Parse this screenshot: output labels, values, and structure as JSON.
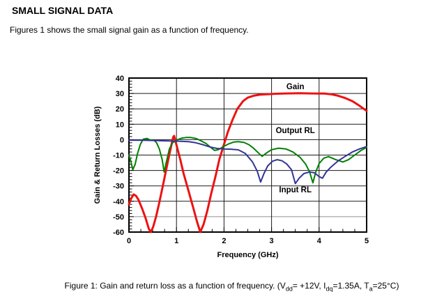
{
  "page": {
    "heading": "SMALL SIGNAL DATA",
    "intro": "Figures 1 shows the small signal gain as a function of frequency."
  },
  "caption": {
    "parts": [
      {
        "t": "Figure 1: Gain and return loss as a function of frequency. (V"
      },
      {
        "t": "dd"
      },
      {
        "t": "= +12V, I"
      },
      {
        "t": "dq"
      },
      {
        "t": "=1.35A, T"
      },
      {
        "t": "a"
      },
      {
        "t": "=25°C)"
      }
    ]
  },
  "chart_data": {
    "type": "line",
    "title": "",
    "xlabel": "Frequency (GHz)",
    "ylabel": "Gain & Return Losses (dB)",
    "xlim": [
      0,
      5
    ],
    "ylim": [
      -60,
      40
    ],
    "x_major_ticks": [
      0,
      1,
      2,
      3,
      4,
      5
    ],
    "y_major_ticks": [
      40,
      30,
      20,
      10,
      0,
      -10,
      -20,
      -30,
      -40,
      -50,
      -60
    ],
    "x_minor_step": 0.25,
    "y_minor_step": 2,
    "grid": true,
    "gray_gridline_at": -50,
    "legend_position": "inline-labels",
    "series": [
      {
        "name": "Gain",
        "color": "#ee1111",
        "width": 3,
        "label_pos": [
          3.5,
          34.5
        ],
        "points": [
          [
            0,
            -42
          ],
          [
            0.05,
            -38
          ],
          [
            0.1,
            -35.5
          ],
          [
            0.15,
            -36.5
          ],
          [
            0.2,
            -39
          ],
          [
            0.28,
            -45
          ],
          [
            0.35,
            -51
          ],
          [
            0.42,
            -58
          ],
          [
            0.46,
            -60
          ],
          [
            0.51,
            -56.5
          ],
          [
            0.57,
            -50
          ],
          [
            0.63,
            -42
          ],
          [
            0.7,
            -32
          ],
          [
            0.78,
            -20
          ],
          [
            0.84,
            -11
          ],
          [
            0.89,
            -4
          ],
          [
            0.93,
            1.5
          ],
          [
            0.95,
            2.5
          ],
          [
            0.98,
            -1
          ],
          [
            1.03,
            -7
          ],
          [
            1.08,
            -13
          ],
          [
            1.15,
            -22
          ],
          [
            1.25,
            -33
          ],
          [
            1.35,
            -44
          ],
          [
            1.43,
            -53
          ],
          [
            1.5,
            -60
          ],
          [
            1.57,
            -55
          ],
          [
            1.65,
            -46
          ],
          [
            1.73,
            -35
          ],
          [
            1.82,
            -24
          ],
          [
            1.9,
            -13
          ],
          [
            2.0,
            -3
          ],
          [
            2.08,
            5
          ],
          [
            2.18,
            13
          ],
          [
            2.28,
            20
          ],
          [
            2.4,
            25
          ],
          [
            2.5,
            27.3
          ],
          [
            2.62,
            28.5
          ],
          [
            2.75,
            29.2
          ],
          [
            2.9,
            29.5
          ],
          [
            3.1,
            29.8
          ],
          [
            3.3,
            30
          ],
          [
            3.6,
            30.2
          ],
          [
            3.85,
            30
          ],
          [
            4.0,
            29.9
          ],
          [
            4.1,
            30
          ],
          [
            4.25,
            29.5
          ],
          [
            4.4,
            28.5
          ],
          [
            4.55,
            27
          ],
          [
            4.7,
            25
          ],
          [
            4.85,
            22
          ],
          [
            5.0,
            18.7
          ]
        ]
      },
      {
        "name": "Output RL",
        "color": "#008000",
        "width": 2,
        "label_pos": [
          3.5,
          6
        ],
        "points": [
          [
            0,
            -10
          ],
          [
            0.04,
            -14
          ],
          [
            0.08,
            -19.5
          ],
          [
            0.13,
            -16
          ],
          [
            0.18,
            -9
          ],
          [
            0.24,
            -3
          ],
          [
            0.3,
            0.3
          ],
          [
            0.38,
            0.8
          ],
          [
            0.45,
            -0.3
          ],
          [
            0.52,
            -0.2
          ],
          [
            0.58,
            -2
          ],
          [
            0.64,
            -6
          ],
          [
            0.7,
            -13
          ],
          [
            0.74,
            -21
          ],
          [
            0.79,
            -14
          ],
          [
            0.85,
            -6
          ],
          [
            0.92,
            -2
          ],
          [
            1.0,
            -0.3
          ],
          [
            1.1,
            0.9
          ],
          [
            1.2,
            1.4
          ],
          [
            1.3,
            1.4
          ],
          [
            1.42,
            0.7
          ],
          [
            1.52,
            -0.8
          ],
          [
            1.62,
            -2.5
          ],
          [
            1.72,
            -5
          ],
          [
            1.8,
            -7
          ],
          [
            1.88,
            -6.5
          ],
          [
            2.0,
            -4.3
          ],
          [
            2.1,
            -2.7
          ],
          [
            2.2,
            -1.6
          ],
          [
            2.3,
            -1.3
          ],
          [
            2.42,
            -1.8
          ],
          [
            2.52,
            -3.2
          ],
          [
            2.62,
            -5.5
          ],
          [
            2.72,
            -8.5
          ],
          [
            2.8,
            -10.8
          ],
          [
            2.9,
            -8.5
          ],
          [
            3.0,
            -6.5
          ],
          [
            3.15,
            -5.5
          ],
          [
            3.3,
            -6
          ],
          [
            3.45,
            -8
          ],
          [
            3.6,
            -11.5
          ],
          [
            3.72,
            -16
          ],
          [
            3.8,
            -21
          ],
          [
            3.87,
            -28
          ],
          [
            3.93,
            -21
          ],
          [
            4.0,
            -15.5
          ],
          [
            4.1,
            -12
          ],
          [
            4.2,
            -11
          ],
          [
            4.35,
            -13
          ],
          [
            4.5,
            -14.5
          ],
          [
            4.62,
            -13
          ],
          [
            4.75,
            -10
          ],
          [
            4.88,
            -7
          ],
          [
            5.0,
            -5
          ]
        ]
      },
      {
        "name": "Input RL",
        "color": "#333399",
        "width": 2,
        "label_pos": [
          3.5,
          -32.5
        ],
        "points": [
          [
            0,
            -0.3
          ],
          [
            0.3,
            -0.4
          ],
          [
            0.6,
            -0.6
          ],
          [
            0.9,
            -0.9
          ],
          [
            1.05,
            -1
          ],
          [
            1.25,
            -1.3
          ],
          [
            1.4,
            -2
          ],
          [
            1.55,
            -3.2
          ],
          [
            1.7,
            -4.7
          ],
          [
            1.85,
            -5.7
          ],
          [
            2.0,
            -6
          ],
          [
            2.15,
            -6.2
          ],
          [
            2.3,
            -6.6
          ],
          [
            2.45,
            -9
          ],
          [
            2.6,
            -14.5
          ],
          [
            2.7,
            -20.5
          ],
          [
            2.77,
            -27.5
          ],
          [
            2.84,
            -22
          ],
          [
            2.92,
            -17
          ],
          [
            3.02,
            -14
          ],
          [
            3.12,
            -13
          ],
          [
            3.22,
            -13.7
          ],
          [
            3.32,
            -15.8
          ],
          [
            3.42,
            -19.5
          ],
          [
            3.5,
            -28.5
          ],
          [
            3.58,
            -25
          ],
          [
            3.68,
            -22
          ],
          [
            3.8,
            -21
          ],
          [
            3.9,
            -21.5
          ],
          [
            4.0,
            -24
          ],
          [
            4.07,
            -25
          ],
          [
            4.15,
            -21
          ],
          [
            4.25,
            -17.8
          ],
          [
            4.4,
            -13.8
          ],
          [
            4.55,
            -10.8
          ],
          [
            4.7,
            -8
          ],
          [
            4.85,
            -6
          ],
          [
            5.0,
            -4.5
          ]
        ]
      }
    ]
  }
}
